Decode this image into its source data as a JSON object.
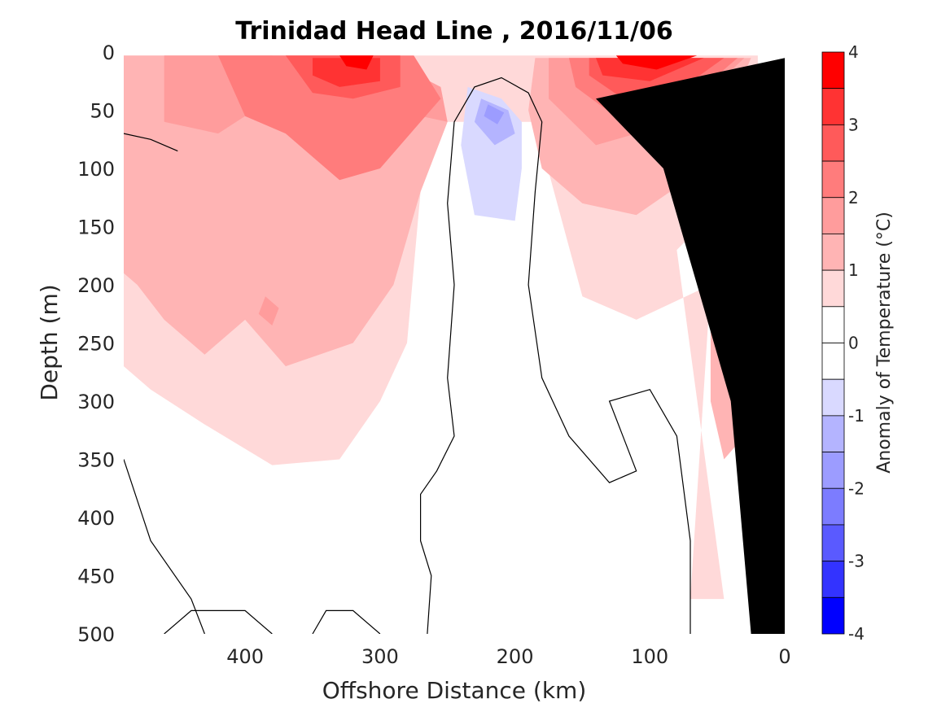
{
  "chart_data": {
    "type": "heatmap",
    "title": "Trinidad Head Line , 2016/11/06",
    "xlabel": "Offshore Distance (km)",
    "ylabel": "Depth (m)",
    "xlim": [
      490,
      0
    ],
    "ylim": [
      0,
      500
    ],
    "x_reversed": true,
    "y_reversed": true,
    "x_ticks": [
      400,
      300,
      200,
      100,
      0
    ],
    "x_tick_labels": [
      "400",
      "300",
      "200",
      "100",
      "0"
    ],
    "y_ticks": [
      0,
      50,
      100,
      150,
      200,
      250,
      300,
      350,
      400,
      450,
      500
    ],
    "y_tick_labels": [
      "0",
      "50",
      "100",
      "150",
      "200",
      "250",
      "300",
      "350",
      "400",
      "450",
      "500"
    ],
    "colorbar": {
      "label": "Anomaly of Temperature (°C)",
      "range": [
        -4,
        4
      ],
      "tick_labels": [
        "4",
        "3",
        "2",
        "1",
        "0",
        "-1",
        "-2",
        "-3",
        "-4"
      ],
      "levels": [
        {
          "from": 3.5,
          "to": 4.0,
          "color": "#ff0000"
        },
        {
          "from": 3.0,
          "to": 3.5,
          "color": "#ff3333"
        },
        {
          "from": 2.5,
          "to": 3.0,
          "color": "#ff5a5a"
        },
        {
          "from": 2.0,
          "to": 2.5,
          "color": "#ff7c7c"
        },
        {
          "from": 1.5,
          "to": 2.0,
          "color": "#ff9c9c"
        },
        {
          "from": 1.0,
          "to": 1.5,
          "color": "#ffb4b4"
        },
        {
          "from": 0.5,
          "to": 1.0,
          "color": "#ffd9d9"
        },
        {
          "from": 0.0,
          "to": 0.5,
          "color": "#ffffff"
        },
        {
          "from": -0.5,
          "to": 0.0,
          "color": "#ffffff"
        },
        {
          "from": -1.0,
          "to": -0.5,
          "color": "#d9d9ff"
        },
        {
          "from": -1.5,
          "to": -1.0,
          "color": "#b4b4ff"
        },
        {
          "from": -2.0,
          "to": -1.5,
          "color": "#9c9cff"
        },
        {
          "from": -2.5,
          "to": -2.0,
          "color": "#7c7cff"
        },
        {
          "from": -3.0,
          "to": -2.5,
          "color": "#5a5aff"
        },
        {
          "from": -3.5,
          "to": -3.0,
          "color": "#3333ff"
        },
        {
          "from": -4.0,
          "to": -3.5,
          "color": "#0000ff"
        }
      ]
    },
    "regions": [
      {
        "level": 0.75,
        "color": "#ffd9d9",
        "points": [
          [
            490,
            3
          ],
          [
            20,
            3
          ],
          [
            20,
            100
          ],
          [
            80,
            170
          ],
          [
            45,
            470
          ],
          [
            70,
            470
          ],
          [
            55,
            200
          ],
          [
            110,
            230
          ],
          [
            150,
            210
          ],
          [
            185,
            60
          ],
          [
            250,
            60
          ],
          [
            270,
            120
          ],
          [
            280,
            250
          ],
          [
            300,
            300
          ],
          [
            330,
            350
          ],
          [
            380,
            355
          ],
          [
            430,
            320
          ],
          [
            470,
            290
          ],
          [
            490,
            270
          ]
        ]
      },
      {
        "level": 1.25,
        "color": "#ffb4b4",
        "points": [
          [
            490,
            3
          ],
          [
            380,
            3
          ],
          [
            340,
            40
          ],
          [
            300,
            35
          ],
          [
            250,
            60
          ],
          [
            270,
            120
          ],
          [
            290,
            200
          ],
          [
            320,
            250
          ],
          [
            370,
            270
          ],
          [
            400,
            230
          ],
          [
            430,
            260
          ],
          [
            460,
            230
          ],
          [
            480,
            200
          ],
          [
            490,
            190
          ]
        ]
      },
      {
        "level": 1.25,
        "color": "#ffb4b4",
        "points": [
          [
            185,
            5
          ],
          [
            25,
            5
          ],
          [
            60,
            100
          ],
          [
            110,
            140
          ],
          [
            150,
            130
          ],
          [
            180,
            100
          ],
          [
            190,
            50
          ]
        ]
      },
      {
        "level": 1.25,
        "color": "#ffb4b4",
        "points": [
          [
            45,
            210
          ],
          [
            30,
            240
          ],
          [
            30,
            330
          ],
          [
            45,
            350
          ],
          [
            55,
            300
          ],
          [
            55,
            230
          ]
        ]
      },
      {
        "level": 1.75,
        "color": "#ff9c9c",
        "points": [
          [
            460,
            3
          ],
          [
            300,
            3
          ],
          [
            255,
            30
          ],
          [
            250,
            60
          ],
          [
            290,
            50
          ],
          [
            330,
            30
          ],
          [
            380,
            40
          ],
          [
            420,
            70
          ],
          [
            460,
            60
          ]
        ]
      },
      {
        "level": 1.75,
        "color": "#ff9c9c",
        "points": [
          [
            175,
            5
          ],
          [
            30,
            5
          ],
          [
            80,
            60
          ],
          [
            140,
            80
          ],
          [
            175,
            40
          ]
        ]
      },
      {
        "level": 1.75,
        "color": "#ff9c9c",
        "points": [
          [
            385,
            210
          ],
          [
            375,
            220
          ],
          [
            380,
            235
          ],
          [
            390,
            225
          ]
        ]
      },
      {
        "level": 2.25,
        "color": "#ff7c7c",
        "points": [
          [
            420,
            3
          ],
          [
            275,
            3
          ],
          [
            255,
            40
          ],
          [
            300,
            100
          ],
          [
            330,
            110
          ],
          [
            350,
            90
          ],
          [
            370,
            70
          ],
          [
            400,
            55
          ]
        ]
      },
      {
        "level": 2.25,
        "color": "#ff7c7c",
        "points": [
          [
            160,
            5
          ],
          [
            35,
            5
          ],
          [
            70,
            40
          ],
          [
            120,
            60
          ],
          [
            155,
            30
          ]
        ]
      },
      {
        "level": 2.75,
        "color": "#ff5a5a",
        "points": [
          [
            370,
            3
          ],
          [
            285,
            3
          ],
          [
            285,
            30
          ],
          [
            320,
            40
          ],
          [
            350,
            35
          ]
        ]
      },
      {
        "level": 2.75,
        "color": "#ff5a5a",
        "points": [
          [
            145,
            5
          ],
          [
            45,
            5
          ],
          [
            75,
            30
          ],
          [
            120,
            40
          ],
          [
            145,
            20
          ]
        ]
      },
      {
        "level": 3.25,
        "color": "#ff3333",
        "points": [
          [
            350,
            5
          ],
          [
            300,
            5
          ],
          [
            300,
            25
          ],
          [
            330,
            30
          ],
          [
            350,
            20
          ]
        ]
      },
      {
        "level": 3.25,
        "color": "#ff3333",
        "points": [
          [
            140,
            5
          ],
          [
            60,
            5
          ],
          [
            100,
            25
          ],
          [
            135,
            20
          ]
        ]
      },
      {
        "level": 3.75,
        "color": "#ff0000",
        "points": [
          [
            330,
            3
          ],
          [
            305,
            3
          ],
          [
            310,
            15
          ],
          [
            325,
            12
          ]
        ]
      },
      {
        "level": 3.75,
        "color": "#ff0000",
        "points": [
          [
            125,
            3
          ],
          [
            65,
            3
          ],
          [
            95,
            15
          ],
          [
            120,
            10
          ]
        ]
      },
      {
        "level": -0.75,
        "color": "#d9d9ff",
        "points": [
          [
            235,
            30
          ],
          [
            240,
            80
          ],
          [
            230,
            140
          ],
          [
            200,
            145
          ],
          [
            195,
            100
          ],
          [
            195,
            60
          ],
          [
            210,
            40
          ]
        ]
      },
      {
        "level": -1.25,
        "color": "#b4b4ff",
        "points": [
          [
            225,
            40
          ],
          [
            230,
            60
          ],
          [
            215,
            80
          ],
          [
            200,
            70
          ],
          [
            205,
            50
          ]
        ]
      },
      {
        "level": -1.75,
        "color": "#9c9cff",
        "points": [
          [
            220,
            45
          ],
          [
            223,
            55
          ],
          [
            213,
            62
          ],
          [
            208,
            52
          ]
        ]
      }
    ],
    "zero_contours": [
      [
        [
          265,
          500
        ],
        [
          262,
          450
        ],
        [
          270,
          420
        ],
        [
          270,
          380
        ],
        [
          258,
          360
        ],
        [
          245,
          330
        ],
        [
          250,
          280
        ],
        [
          245,
          200
        ],
        [
          250,
          130
        ],
        [
          245,
          60
        ],
        [
          230,
          30
        ],
        [
          210,
          22
        ],
        [
          190,
          35
        ],
        [
          180,
          60
        ],
        [
          185,
          120
        ],
        [
          190,
          200
        ],
        [
          180,
          280
        ],
        [
          160,
          330
        ],
        [
          130,
          370
        ],
        [
          110,
          360
        ],
        [
          130,
          300
        ],
        [
          100,
          290
        ],
        [
          80,
          330
        ],
        [
          70,
          420
        ],
        [
          70,
          500
        ]
      ],
      [
        [
          490,
          350
        ],
        [
          470,
          420
        ],
        [
          440,
          470
        ],
        [
          430,
          500
        ]
      ],
      [
        [
          490,
          70
        ],
        [
          470,
          75
        ],
        [
          450,
          85
        ]
      ],
      [
        [
          460,
          500
        ],
        [
          440,
          480
        ],
        [
          400,
          480
        ],
        [
          380,
          500
        ]
      ],
      [
        [
          350,
          500
        ],
        [
          340,
          480
        ],
        [
          320,
          480
        ],
        [
          300,
          500
        ]
      ]
    ],
    "bathymetry_polygon": [
      [
        0,
        5
      ],
      [
        0,
        500
      ],
      [
        25,
        500
      ],
      [
        40,
        300
      ],
      [
        90,
        100
      ],
      [
        140,
        40
      ]
    ],
    "bathymetry_color": "#000000"
  }
}
